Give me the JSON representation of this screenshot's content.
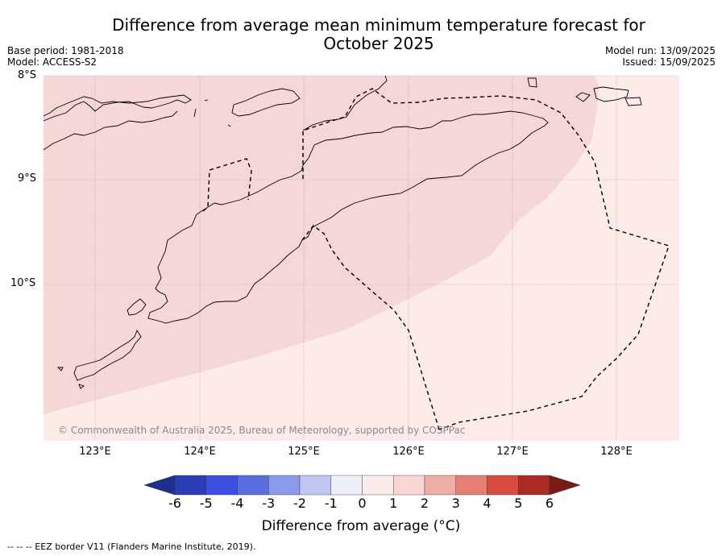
{
  "title_line1": "Difference from average mean minimum temperature forecast for",
  "title_line2": "October 2025",
  "base_period": "Base period: 1981-2018",
  "model": "Model: ACCESS-S2",
  "model_run": "Model run: 13/09/2025",
  "issued": "Issued: 15/09/2025",
  "lat_labels": [
    "8°S",
    "9°S",
    "10°S"
  ],
  "lon_labels": [
    "123°E",
    "124°E",
    "125°E",
    "126°E",
    "127°E",
    "128°E"
  ],
  "copyright": "© Commonwealth of Australia 2025, Bureau of Meteorology, supported by COSPPac",
  "colorbar": {
    "ticks": [
      "-6",
      "-5",
      "-4",
      "-3",
      "-2",
      "-1",
      "0",
      "1",
      "2",
      "3",
      "4",
      "5",
      "6"
    ],
    "colors": [
      "#1f2f8f",
      "#2b3db5",
      "#3b50e0",
      "#5a6ee0",
      "#8a9ae8",
      "#c0c6f2",
      "#eceefa",
      "#fcece9",
      "#f7d6d4",
      "#efada8",
      "#e57f74",
      "#d94b3f",
      "#ab2b22",
      "#7a1b16"
    ],
    "label": "Difference from average (°C)"
  },
  "map_fills": {
    "zone_1_2": "#f5d7d5",
    "zone_0_1": "#fcebe8"
  },
  "footer": "--  --  -- EEZ border V11 (Flanders Marine Institute, 2019)."
}
